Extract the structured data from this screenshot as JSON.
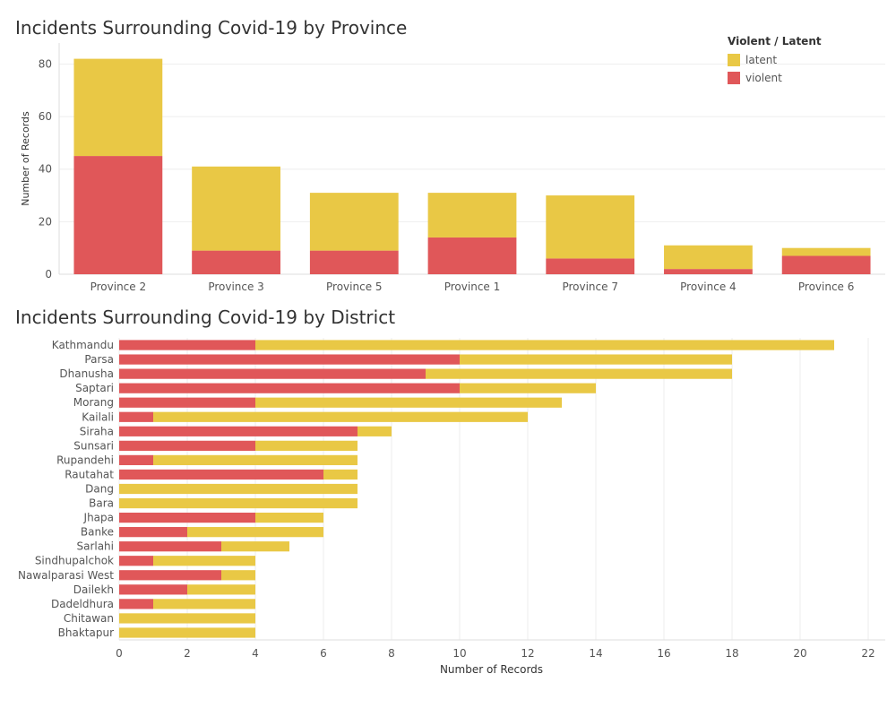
{
  "colors": {
    "latent": "#E9C845",
    "violent": "#E05759",
    "grid": "#eeeeee",
    "axis": "#dddddd",
    "tick_text": "#555555"
  },
  "legend": {
    "title": "Violent / Latent",
    "items": [
      {
        "label": "latent",
        "color": "#E9C845"
      },
      {
        "label": "violent",
        "color": "#E05759"
      }
    ]
  },
  "chart_data": [
    {
      "type": "bar",
      "orientation": "vertical",
      "stacked": true,
      "title": "Incidents Surrounding Covid-19 by Province",
      "xlabel": "",
      "ylabel": "Number of Records",
      "ylim": [
        0,
        88
      ],
      "yticks": [
        0,
        20,
        40,
        60,
        80
      ],
      "categories": [
        "Province 2",
        "Province 3",
        "Province 5",
        "Province 1",
        "Province 7",
        "Province 4",
        "Province 6"
      ],
      "series": [
        {
          "name": "violent",
          "values": [
            45,
            9,
            9,
            14,
            6,
            2,
            7
          ]
        },
        {
          "name": "latent",
          "values": [
            37,
            32,
            22,
            17,
            24,
            9,
            3
          ]
        }
      ],
      "legend_position": "top-right"
    },
    {
      "type": "bar",
      "orientation": "horizontal",
      "stacked": true,
      "title": "Incidents Surrounding Covid-19 by District",
      "xlabel": "Number of Records",
      "ylabel": "",
      "xlim": [
        0,
        22.5
      ],
      "xticks": [
        0,
        2,
        4,
        6,
        8,
        10,
        12,
        14,
        16,
        18,
        20,
        22
      ],
      "categories": [
        "Kathmandu",
        "Parsa",
        "Dhanusha",
        "Saptari",
        "Morang",
        "Kailali",
        "Siraha",
        "Sunsari",
        "Rupandehi",
        "Rautahat",
        "Dang",
        "Bara",
        "Jhapa",
        "Banke",
        "Sarlahi",
        "Sindhupalchok",
        "Nawalparasi West",
        "Dailekh",
        "Dadeldhura",
        "Chitawan",
        "Bhaktapur"
      ],
      "series": [
        {
          "name": "violent",
          "values": [
            4,
            10,
            9,
            10,
            4,
            1,
            7,
            4,
            1,
            6,
            0,
            0,
            4,
            2,
            3,
            1,
            3,
            2,
            1,
            0,
            0
          ]
        },
        {
          "name": "latent",
          "values": [
            17,
            8,
            9,
            4,
            9,
            11,
            1,
            3,
            6,
            1,
            7,
            7,
            2,
            4,
            2,
            3,
            1,
            2,
            3,
            4,
            4
          ]
        }
      ]
    }
  ]
}
